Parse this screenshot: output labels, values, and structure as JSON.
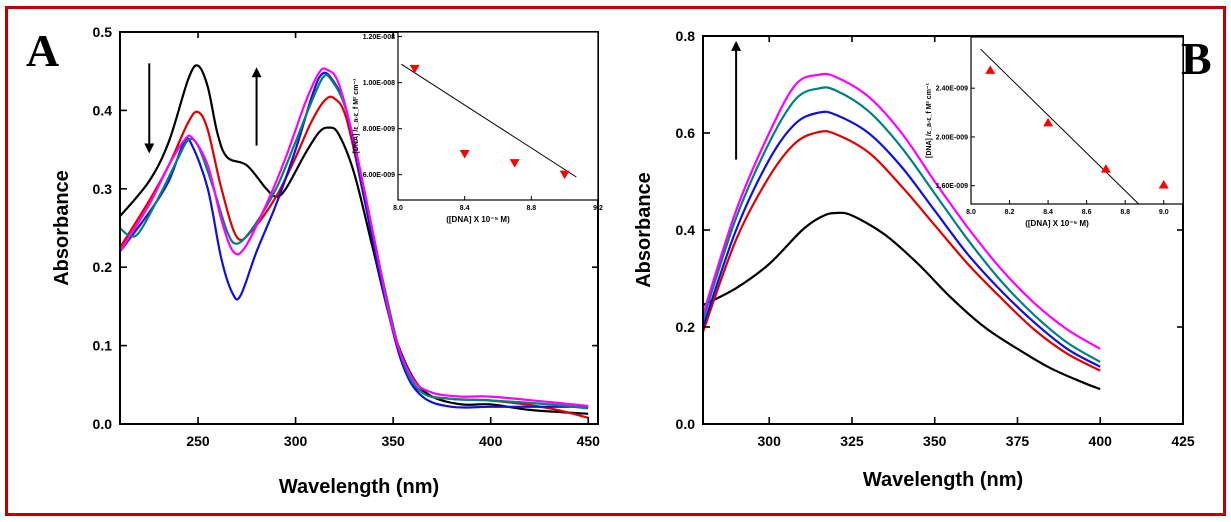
{
  "chart_data": [
    {
      "panel": "A",
      "type": "line",
      "xlabel": "Wavelength (nm)",
      "ylabel": "Absorbance",
      "xlim": [
        210,
        455
      ],
      "ylim": [
        0.0,
        0.5
      ],
      "xticks": [
        250,
        300,
        350,
        400,
        450
      ],
      "yticks": [
        0.0,
        0.1,
        0.2,
        0.3,
        0.4,
        0.5
      ],
      "ytick_labels": [
        "0.0",
        "0.1",
        "0.2",
        "0.3",
        "0.4",
        "0.5"
      ],
      "arrows": [
        {
          "direction": "down",
          "x": 225,
          "y_from": 0.46,
          "y_to": 0.345
        },
        {
          "direction": "up",
          "x": 280,
          "y_from": 0.355,
          "y_to": 0.455
        }
      ],
      "series": [
        {
          "color": "#000000",
          "points": [
            [
              210,
              0.265
            ],
            [
              225,
              0.31
            ],
            [
              235,
              0.36
            ],
            [
              245,
              0.44
            ],
            [
              250,
              0.457
            ],
            [
              255,
              0.43
            ],
            [
              260,
              0.37
            ],
            [
              265,
              0.34
            ],
            [
              275,
              0.33
            ],
            [
              285,
              0.3
            ],
            [
              290,
              0.29
            ],
            [
              295,
              0.3
            ],
            [
              305,
              0.345
            ],
            [
              312,
              0.372
            ],
            [
              317,
              0.378
            ],
            [
              322,
              0.37
            ],
            [
              330,
              0.32
            ],
            [
              340,
              0.22
            ],
            [
              350,
              0.12
            ],
            [
              360,
              0.06
            ],
            [
              370,
              0.035
            ],
            [
              385,
              0.025
            ],
            [
              400,
              0.025
            ],
            [
              420,
              0.018
            ],
            [
              450,
              0.013
            ]
          ]
        },
        {
          "color": "#e00000",
          "points": [
            [
              210,
              0.225
            ],
            [
              225,
              0.285
            ],
            [
              235,
              0.33
            ],
            [
              245,
              0.385
            ],
            [
              250,
              0.398
            ],
            [
              255,
              0.375
            ],
            [
              262,
              0.3
            ],
            [
              270,
              0.238
            ],
            [
              278,
              0.248
            ],
            [
              290,
              0.29
            ],
            [
              300,
              0.34
            ],
            [
              308,
              0.385
            ],
            [
              315,
              0.413
            ],
            [
              320,
              0.415
            ],
            [
              326,
              0.39
            ],
            [
              335,
              0.29
            ],
            [
              345,
              0.17
            ],
            [
              355,
              0.075
            ],
            [
              365,
              0.04
            ],
            [
              380,
              0.032
            ],
            [
              400,
              0.03
            ],
            [
              430,
              0.02
            ],
            [
              450,
              0.008
            ]
          ]
        },
        {
          "color": "#1010e0",
          "points": [
            [
              210,
              0.22
            ],
            [
              225,
              0.27
            ],
            [
              235,
              0.31
            ],
            [
              243,
              0.36
            ],
            [
              247,
              0.355
            ],
            [
              255,
              0.3
            ],
            [
              262,
              0.21
            ],
            [
              268,
              0.165
            ],
            [
              272,
              0.165
            ],
            [
              280,
              0.22
            ],
            [
              290,
              0.28
            ],
            [
              300,
              0.35
            ],
            [
              308,
              0.415
            ],
            [
              313,
              0.445
            ],
            [
              318,
              0.442
            ],
            [
              326,
              0.4
            ],
            [
              335,
              0.29
            ],
            [
              345,
              0.17
            ],
            [
              355,
              0.075
            ],
            [
              365,
              0.035
            ],
            [
              380,
              0.022
            ],
            [
              400,
              0.022
            ],
            [
              430,
              0.022
            ],
            [
              450,
              0.022
            ]
          ]
        },
        {
          "color": "#008080",
          "points": [
            [
              210,
              0.25
            ],
            [
              215,
              0.24
            ],
            [
              220,
              0.245
            ],
            [
              230,
              0.29
            ],
            [
              240,
              0.34
            ],
            [
              245,
              0.362
            ],
            [
              250,
              0.355
            ],
            [
              258,
              0.3
            ],
            [
              265,
              0.245
            ],
            [
              270,
              0.23
            ],
            [
              278,
              0.25
            ],
            [
              290,
              0.3
            ],
            [
              300,
              0.36
            ],
            [
              308,
              0.41
            ],
            [
              314,
              0.442
            ],
            [
              318,
              0.44
            ],
            [
              326,
              0.4
            ],
            [
              335,
              0.3
            ],
            [
              345,
              0.18
            ],
            [
              355,
              0.08
            ],
            [
              365,
              0.04
            ],
            [
              380,
              0.032
            ],
            [
              400,
              0.03
            ],
            [
              430,
              0.025
            ],
            [
              450,
              0.02
            ]
          ]
        },
        {
          "color": "#ff00ff",
          "points": [
            [
              210,
              0.22
            ],
            [
              225,
              0.28
            ],
            [
              235,
              0.33
            ],
            [
              243,
              0.362
            ],
            [
              247,
              0.365
            ],
            [
              255,
              0.33
            ],
            [
              262,
              0.26
            ],
            [
              268,
              0.22
            ],
            [
              274,
              0.225
            ],
            [
              285,
              0.28
            ],
            [
              295,
              0.34
            ],
            [
              305,
              0.41
            ],
            [
              312,
              0.448
            ],
            [
              316,
              0.452
            ],
            [
              322,
              0.435
            ],
            [
              330,
              0.36
            ],
            [
              340,
              0.24
            ],
            [
              350,
              0.12
            ],
            [
              360,
              0.058
            ],
            [
              370,
              0.04
            ],
            [
              385,
              0.035
            ],
            [
              400,
              0.035
            ],
            [
              430,
              0.028
            ],
            [
              450,
              0.023
            ]
          ]
        }
      ],
      "inset": {
        "ylabel": "[DNA] /ε_a-ε_f M² cm⁻¹",
        "xlabel": "([DNA] X 10⁻⁵ M)",
        "xlim": [
          8.0,
          9.2
        ],
        "ylim": [
          4.9e-09,
          1.22e-08
        ],
        "xticks": [
          8.0,
          8.4,
          8.8,
          9.2
        ],
        "xtick_labels": [
          "8.0",
          "8.4",
          "8.8",
          "9.2"
        ],
        "yticks": [
          6e-09,
          8e-09,
          1e-08,
          1.2e-08
        ],
        "ytick_labels": [
          "6.00E-009",
          "8.00E-009",
          "1.00E-008",
          "1.20E-008"
        ],
        "marker": "triangle-down",
        "marker_color": "#ff0000",
        "points": [
          [
            8.1,
            1.06e-08
          ],
          [
            8.4,
            6.9e-09
          ],
          [
            8.7,
            6.5e-09
          ],
          [
            9.0,
            6e-09
          ]
        ],
        "fit_line": [
          [
            8.02,
            1.08e-08
          ],
          [
            9.07,
            5.9e-09
          ]
        ]
      }
    },
    {
      "panel": "B",
      "type": "line",
      "xlabel": "Wavelength (nm)",
      "ylabel": "Absorbance",
      "xlim": [
        280,
        425
      ],
      "ylim": [
        0.0,
        0.8
      ],
      "xticks": [
        300,
        325,
        350,
        375,
        400,
        425
      ],
      "yticks": [
        0.0,
        0.2,
        0.4,
        0.6,
        0.8
      ],
      "ytick_labels": [
        "0.0",
        "0.2",
        "0.4",
        "0.6",
        "0.8"
      ],
      "arrows": [
        {
          "direction": "up",
          "x": 290,
          "y_from": 0.545,
          "y_to": 0.79
        }
      ],
      "series": [
        {
          "color": "#000000",
          "points": [
            [
              280,
              0.245
            ],
            [
              290,
              0.28
            ],
            [
              300,
              0.33
            ],
            [
              310,
              0.4
            ],
            [
              316,
              0.428
            ],
            [
              320,
              0.435
            ],
            [
              325,
              0.43
            ],
            [
              335,
              0.39
            ],
            [
              345,
              0.33
            ],
            [
              355,
              0.26
            ],
            [
              365,
              0.2
            ],
            [
              375,
              0.155
            ],
            [
              385,
              0.115
            ],
            [
              395,
              0.085
            ],
            [
              400,
              0.072
            ]
          ]
        },
        {
          "color": "#e00000",
          "points": [
            [
              280,
              0.19
            ],
            [
              290,
              0.38
            ],
            [
              300,
              0.51
            ],
            [
              308,
              0.58
            ],
            [
              315,
              0.602
            ],
            [
              320,
              0.598
            ],
            [
              330,
              0.56
            ],
            [
              340,
              0.49
            ],
            [
              350,
              0.41
            ],
            [
              360,
              0.33
            ],
            [
              370,
              0.26
            ],
            [
              380,
              0.195
            ],
            [
              390,
              0.145
            ],
            [
              400,
              0.11
            ]
          ]
        },
        {
          "color": "#1010e0",
          "points": [
            [
              280,
              0.2
            ],
            [
              290,
              0.4
            ],
            [
              300,
              0.545
            ],
            [
              308,
              0.62
            ],
            [
              315,
              0.642
            ],
            [
              320,
              0.638
            ],
            [
              330,
              0.6
            ],
            [
              340,
              0.53
            ],
            [
              350,
              0.44
            ],
            [
              360,
              0.35
            ],
            [
              370,
              0.275
            ],
            [
              380,
              0.21
            ],
            [
              390,
              0.155
            ],
            [
              400,
              0.118
            ]
          ]
        },
        {
          "color": "#008080",
          "points": [
            [
              280,
              0.215
            ],
            [
              290,
              0.425
            ],
            [
              300,
              0.58
            ],
            [
              308,
              0.67
            ],
            [
              315,
              0.692
            ],
            [
              320,
              0.688
            ],
            [
              330,
              0.645
            ],
            [
              340,
              0.57
            ],
            [
              350,
              0.475
            ],
            [
              360,
              0.38
            ],
            [
              370,
              0.295
            ],
            [
              380,
              0.225
            ],
            [
              390,
              0.168
            ],
            [
              400,
              0.128
            ]
          ]
        },
        {
          "color": "#ff00ff",
          "points": [
            [
              280,
              0.225
            ],
            [
              290,
              0.44
            ],
            [
              300,
              0.6
            ],
            [
              308,
              0.7
            ],
            [
              315,
              0.72
            ],
            [
              320,
              0.716
            ],
            [
              330,
              0.675
            ],
            [
              340,
              0.6
            ],
            [
              350,
              0.5
            ],
            [
              360,
              0.405
            ],
            [
              370,
              0.32
            ],
            [
              380,
              0.25
            ],
            [
              390,
              0.195
            ],
            [
              400,
              0.155
            ]
          ]
        }
      ],
      "inset": {
        "ylabel": "[DNA] /ε_a-ε_f M² cm⁻¹",
        "xlabel": "([DNA] X 10⁻⁵ M)",
        "xlim": [
          8.0,
          9.1
        ],
        "ylim": [
          1.45e-09,
          2.82e-09
        ],
        "xticks": [
          8.0,
          8.2,
          8.4,
          8.6,
          8.8,
          9.0
        ],
        "xtick_labels": [
          "8.0",
          "8.2",
          "8.4",
          "8.6",
          "8.8",
          "9.0"
        ],
        "yticks": [
          1.6e-09,
          2e-09,
          2.4e-09
        ],
        "ytick_labels": [
          "1.60E-009",
          "2.00E-009",
          "2.40E-009"
        ],
        "marker": "triangle-up",
        "marker_color": "#ff0000",
        "points": [
          [
            8.1,
            2.55e-09
          ],
          [
            8.4,
            2.12e-09
          ],
          [
            8.7,
            1.74e-09
          ],
          [
            9.0,
            1.61e-09
          ]
        ],
        "fit_line": [
          [
            8.05,
            2.72e-09
          ],
          [
            8.87,
            1.45e-09
          ]
        ]
      }
    }
  ]
}
